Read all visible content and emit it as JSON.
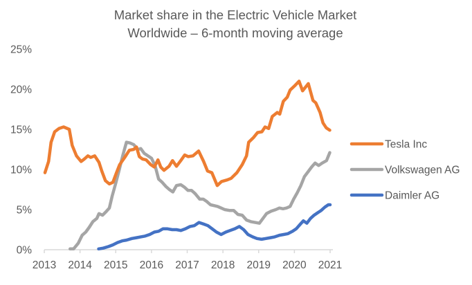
{
  "chart_data": {
    "type": "line",
    "title": "Market share in the Electric Vehicle Market Worldwide – 6-month moving average",
    "title_lines": [
      "Market share in the Electric Vehicle Market",
      "Worldwide – 6-month moving average"
    ],
    "xlabel": "",
    "ylabel": "",
    "xlim": [
      2013,
      2021
    ],
    "ylim": [
      0,
      25
    ],
    "x_ticks": [
      2013,
      2014,
      2015,
      2016,
      2017,
      2018,
      2019,
      2020,
      2021
    ],
    "x_tick_labels": [
      "2013",
      "2014",
      "2015",
      "2016",
      "2017",
      "2018",
      "2019",
      "2020",
      "2021"
    ],
    "y_ticks": [
      0,
      5,
      10,
      15,
      20,
      25
    ],
    "y_tick_labels": [
      "0%",
      "5%",
      "10%",
      "15%",
      "20%",
      "25%"
    ],
    "grid": false,
    "legend_position": "right",
    "series": [
      {
        "name": "Tesla Inc",
        "color": "#ED7D31",
        "x": [
          2013.02,
          2013.12,
          2013.19,
          2013.29,
          2013.41,
          2013.54,
          2013.7,
          2013.78,
          2013.9,
          2014.03,
          2014.12,
          2014.22,
          2014.3,
          2014.41,
          2014.53,
          2014.61,
          2014.71,
          2014.82,
          2014.92,
          2015.02,
          2015.11,
          2015.25,
          2015.38,
          2015.5,
          2015.58,
          2015.66,
          2015.75,
          2015.85,
          2015.98,
          2016.08,
          2016.18,
          2016.26,
          2016.35,
          2016.49,
          2016.59,
          2016.7,
          2016.82,
          2016.93,
          2017.03,
          2017.16,
          2017.32,
          2017.46,
          2017.57,
          2017.69,
          2017.84,
          2017.96,
          2018.12,
          2018.23,
          2018.39,
          2018.54,
          2018.66,
          2018.72,
          2018.86,
          2018.97,
          2019.09,
          2019.18,
          2019.28,
          2019.38,
          2019.52,
          2019.59,
          2019.69,
          2019.8,
          2019.88,
          2020.0,
          2020.13,
          2020.23,
          2020.39,
          2020.52,
          2020.6,
          2020.72,
          2020.8,
          2020.89,
          2020.99
        ],
        "values": [
          9.6,
          11.0,
          13.4,
          14.7,
          15.1,
          15.3,
          15.0,
          13.0,
          11.7,
          11.0,
          11.3,
          11.7,
          11.5,
          11.7,
          10.9,
          9.8,
          8.6,
          8.2,
          8.4,
          9.6,
          10.6,
          11.5,
          12.4,
          12.5,
          12.8,
          11.6,
          11.3,
          11.2,
          10.6,
          10.3,
          11.2,
          10.3,
          9.9,
          10.4,
          11.1,
          10.4,
          11.1,
          11.8,
          11.6,
          11.7,
          12.3,
          11.0,
          9.8,
          9.6,
          8.0,
          8.5,
          8.7,
          8.9,
          9.6,
          10.6,
          11.7,
          13.4,
          14.0,
          14.6,
          14.7,
          15.3,
          15.1,
          16.6,
          17.1,
          16.9,
          18.5,
          19.0,
          19.9,
          20.4,
          21.0,
          19.8,
          20.7,
          18.6,
          18.3,
          17.1,
          15.8,
          15.2,
          14.9
        ]
      },
      {
        "name": "Volkswagen AG",
        "color": "#A5A5A5",
        "x": [
          2013.72,
          2013.82,
          2013.95,
          2014.06,
          2014.16,
          2014.26,
          2014.36,
          2014.47,
          2014.53,
          2014.63,
          2014.72,
          2014.82,
          2014.9,
          2015.0,
          2015.1,
          2015.2,
          2015.3,
          2015.4,
          2015.5,
          2015.62,
          2015.7,
          2015.8,
          2015.9,
          2016.0,
          2016.1,
          2016.2,
          2016.3,
          2016.4,
          2016.5,
          2016.6,
          2016.7,
          2016.82,
          2016.92,
          2017.02,
          2017.12,
          2017.22,
          2017.35,
          2017.45,
          2017.55,
          2017.65,
          2017.75,
          2017.85,
          2017.95,
          2018.05,
          2018.18,
          2018.3,
          2018.42,
          2018.54,
          2018.66,
          2018.78,
          2018.9,
          2019.02,
          2019.12,
          2019.22,
          2019.35,
          2019.48,
          2019.58,
          2019.68,
          2019.78,
          2019.88,
          2019.98,
          2020.08,
          2020.18,
          2020.28,
          2020.38,
          2020.48,
          2020.58,
          2020.68,
          2020.78,
          2020.9,
          2020.99
        ],
        "values": [
          0.1,
          0.1,
          0.8,
          1.8,
          2.2,
          2.8,
          3.5,
          3.9,
          4.5,
          4.3,
          4.7,
          5.2,
          6.7,
          8.3,
          10.0,
          11.8,
          13.4,
          13.3,
          13.1,
          12.5,
          12.6,
          12.0,
          11.7,
          11.4,
          10.5,
          8.8,
          8.4,
          7.9,
          7.5,
          7.2,
          8.0,
          8.1,
          7.8,
          7.4,
          7.4,
          7.0,
          6.3,
          6.3,
          6.0,
          5.6,
          5.5,
          5.4,
          5.2,
          5.0,
          4.9,
          4.9,
          4.4,
          4.3,
          3.7,
          3.5,
          3.4,
          3.3,
          3.9,
          4.5,
          4.8,
          5.0,
          5.2,
          5.1,
          5.2,
          5.4,
          6.3,
          7.1,
          8.0,
          9.1,
          9.7,
          10.3,
          10.8,
          10.5,
          10.8,
          11.1,
          12.1
        ]
      },
      {
        "name": "Daimler AG",
        "color": "#4472C4",
        "x": [
          2014.52,
          2014.65,
          2014.8,
          2014.92,
          2015.05,
          2015.18,
          2015.3,
          2015.45,
          2015.58,
          2015.7,
          2015.82,
          2015.95,
          2016.08,
          2016.2,
          2016.32,
          2016.45,
          2016.58,
          2016.7,
          2016.82,
          2016.95,
          2017.08,
          2017.2,
          2017.33,
          2017.46,
          2017.58,
          2017.7,
          2017.82,
          2017.95,
          2018.08,
          2018.2,
          2018.33,
          2018.46,
          2018.58,
          2018.7,
          2018.83,
          2018.95,
          2019.08,
          2019.2,
          2019.33,
          2019.45,
          2019.58,
          2019.7,
          2019.82,
          2019.95,
          2020.05,
          2020.15,
          2020.25,
          2020.35,
          2020.45,
          2020.55,
          2020.65,
          2020.75,
          2020.85,
          2020.95,
          2021.0
        ],
        "values": [
          0.1,
          0.2,
          0.4,
          0.6,
          0.9,
          1.1,
          1.2,
          1.4,
          1.5,
          1.6,
          1.7,
          1.9,
          2.2,
          2.3,
          2.6,
          2.6,
          2.5,
          2.5,
          2.4,
          2.6,
          2.9,
          3.0,
          3.4,
          3.2,
          3.0,
          2.6,
          2.2,
          1.9,
          2.2,
          2.4,
          2.6,
          2.9,
          2.5,
          1.9,
          1.6,
          1.4,
          1.3,
          1.4,
          1.5,
          1.6,
          1.8,
          1.9,
          2.0,
          2.3,
          2.6,
          3.1,
          3.6,
          3.3,
          3.9,
          4.3,
          4.6,
          4.9,
          5.3,
          5.6,
          5.6
        ]
      }
    ]
  }
}
